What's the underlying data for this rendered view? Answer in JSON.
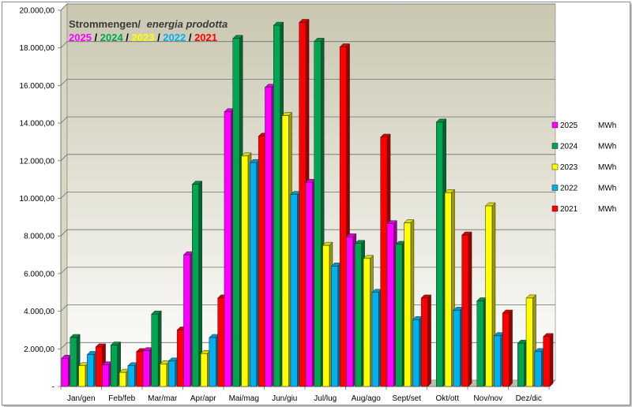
{
  "chart_data": {
    "type": "bar",
    "title": "Strommengen/",
    "title_italic": "energia prodotta",
    "title_years": [
      "2025",
      "2024",
      "2023",
      "2022",
      "2021"
    ],
    "title_separator": " / ",
    "categories": [
      "Jan/gen",
      "Feb/feb",
      "Mar/mar",
      "Apr/apr",
      "Mai/mag",
      "Jun/giu",
      "Jul/lug",
      "Aug/ago",
      "Sept/set",
      "Okt/ott",
      "Nov/nov",
      "Dez/dic"
    ],
    "y_ticks": [
      "-",
      "2.000,00",
      "4.000,00",
      "6.000,00",
      "8.000,00",
      "10.000,00",
      "12.000,00",
      "14.000,00",
      "16.000,00",
      "18.000,00",
      "20.000,00"
    ],
    "ylim": [
      0,
      20000
    ],
    "legend_unit": "MWh",
    "legend_position": "right",
    "grid": true,
    "series": [
      {
        "name": "2025",
        "color": "#ff00ff",
        "values": [
          1500,
          1150,
          1900,
          7000,
          14600,
          15900,
          10850,
          7950,
          8650,
          null,
          null,
          null
        ]
      },
      {
        "name": "2024",
        "color": "#00a650",
        "values": [
          2600,
          2200,
          3850,
          10750,
          18500,
          19200,
          18350,
          7600,
          7550,
          14050,
          4550,
          2300
        ]
      },
      {
        "name": "2023",
        "color": "#ffff00",
        "values": [
          1100,
          750,
          1200,
          1750,
          12250,
          14400,
          7500,
          6800,
          8700,
          10300,
          9600,
          4700
        ]
      },
      {
        "name": "2022",
        "color": "#00b0f0",
        "values": [
          1700,
          1100,
          1350,
          2600,
          11900,
          10200,
          6400,
          5000,
          3550,
          4050,
          2700,
          1850
        ]
      },
      {
        "name": "2021",
        "color": "#ff0000",
        "values": [
          2100,
          1850,
          3000,
          4700,
          13300,
          19350,
          18050,
          13250,
          4700,
          8050,
          3900,
          2650
        ]
      }
    ]
  }
}
